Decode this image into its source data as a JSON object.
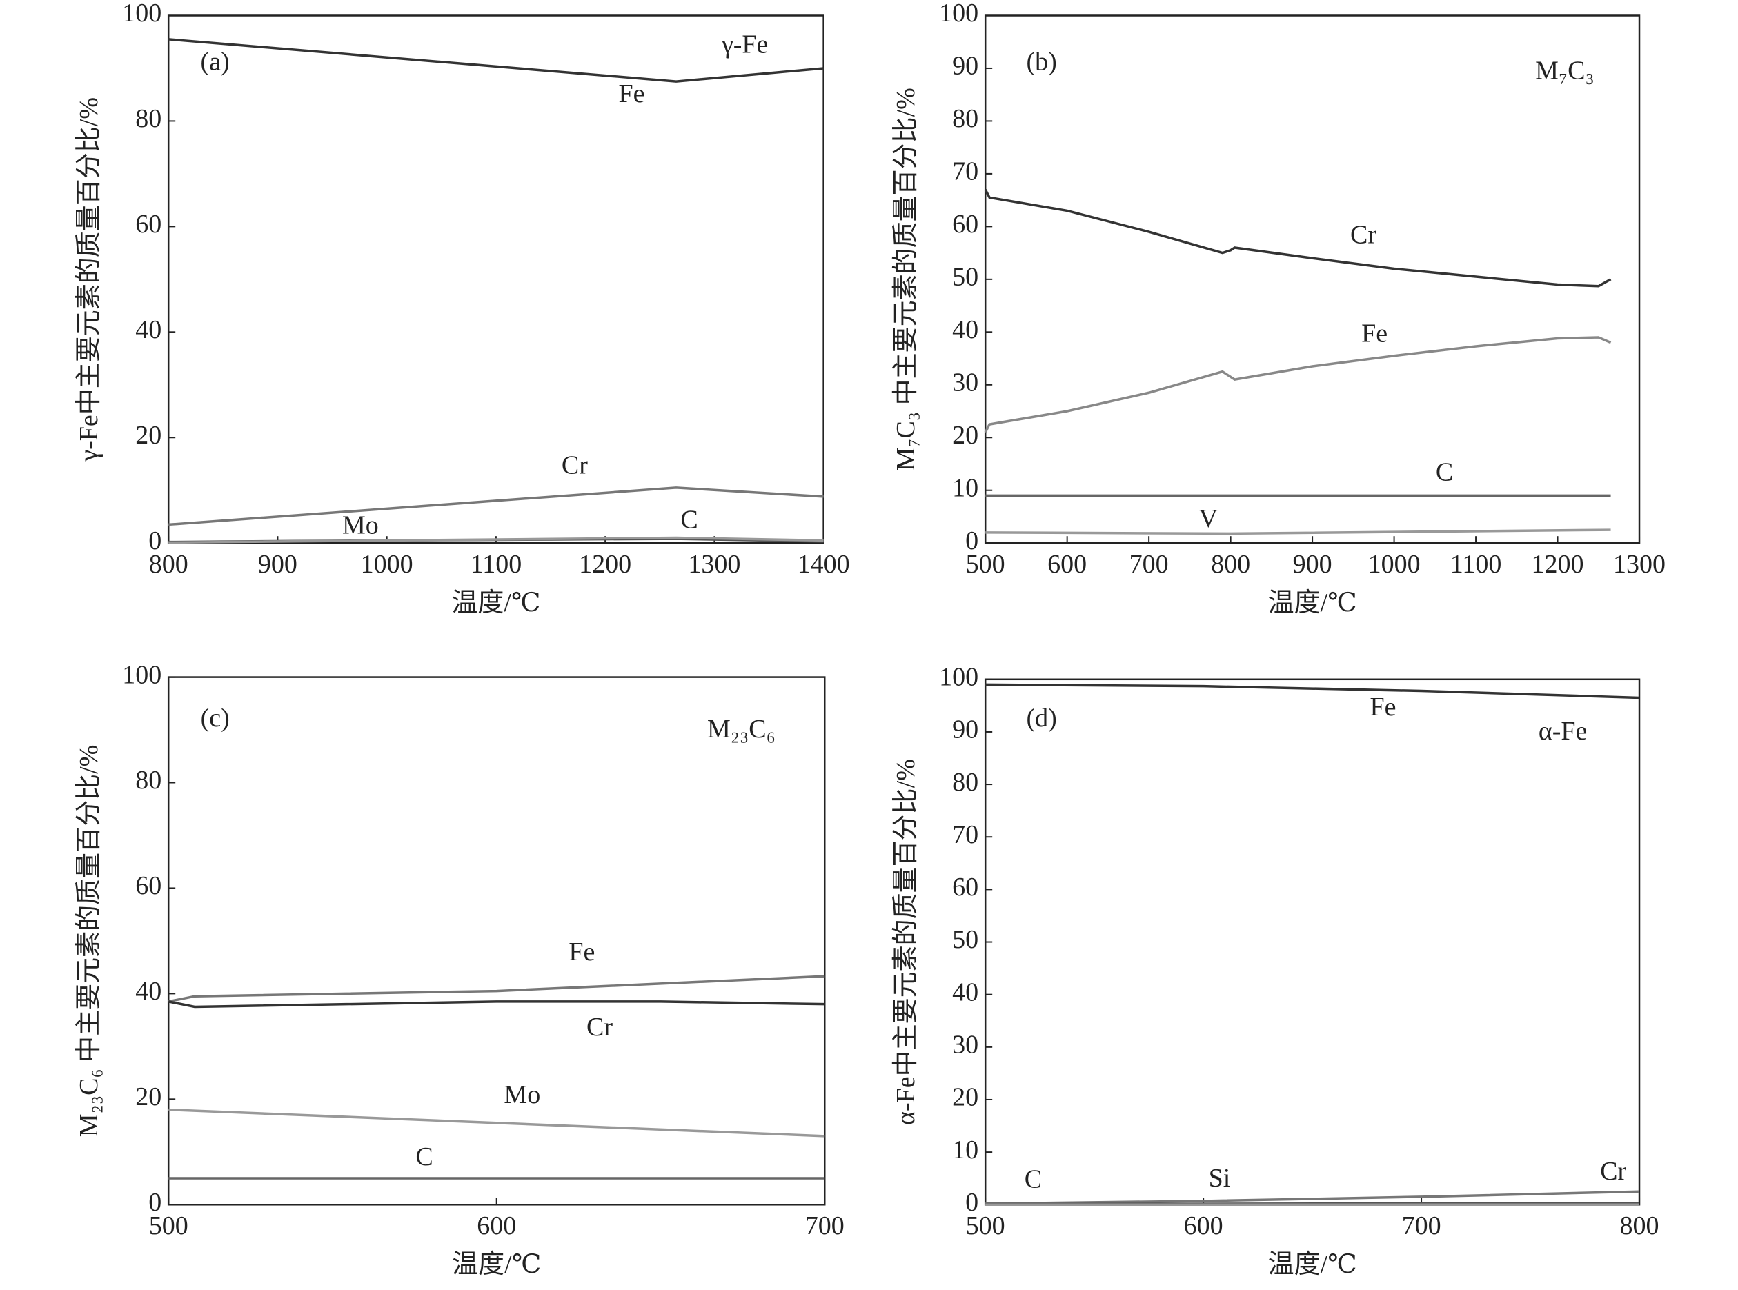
{
  "chart_data": [
    {
      "type": "line",
      "panel_label": "(a)",
      "annotation": "γ-Fe",
      "x_label": "温度/℃",
      "y_label": "γ-Fe中主要元素的质量百分比/%",
      "xlim": [
        800,
        1400
      ],
      "xticks": [
        800,
        900,
        1000,
        1100,
        1200,
        1300,
        1400
      ],
      "ylim": [
        0,
        100
      ],
      "yticks": [
        0,
        20,
        40,
        60,
        80,
        100
      ],
      "series": [
        {
          "name": "Fe",
          "color": "#333333",
          "x": [
            800,
            1265,
            1400
          ],
          "values": [
            95.5,
            87.5,
            90
          ]
        },
        {
          "name": "Cr",
          "color": "#777777",
          "x": [
            800,
            1265,
            1400
          ],
          "values": [
            3.5,
            10.5,
            8.8
          ]
        },
        {
          "name": "Mo",
          "color": "#555555",
          "x": [
            800,
            1000,
            1265,
            1400
          ],
          "values": [
            0.2,
            0.5,
            0.8,
            0.3
          ]
        },
        {
          "name": "C",
          "color": "#999999",
          "x": [
            800,
            1265,
            1400
          ],
          "values": [
            0.1,
            1,
            0.5
          ]
        }
      ]
    },
    {
      "type": "line",
      "panel_label": "(b)",
      "annotation": "M₇C₃",
      "x_label": "温度/℃",
      "y_label": "M₇C₃ 中主要元素的质量百分比/%",
      "xlim": [
        500,
        1300
      ],
      "xticks": [
        500,
        600,
        700,
        800,
        900,
        1000,
        1100,
        1200,
        1300
      ],
      "ylim": [
        0,
        100
      ],
      "yticks": [
        0,
        10,
        20,
        30,
        40,
        50,
        60,
        70,
        80,
        90,
        100
      ],
      "series": [
        {
          "name": "Cr",
          "color": "#333333",
          "x": [
            500,
            505,
            600,
            700,
            790,
            800,
            805,
            900,
            1000,
            1100,
            1200,
            1250,
            1265
          ],
          "values": [
            67,
            65.5,
            63,
            59,
            55,
            55.5,
            56,
            54,
            52,
            50.5,
            49,
            48.7,
            50
          ]
        },
        {
          "name": "Fe",
          "color": "#888888",
          "x": [
            500,
            505,
            600,
            700,
            790,
            800,
            805,
            900,
            1000,
            1100,
            1200,
            1250,
            1265
          ],
          "values": [
            21,
            22.5,
            25,
            28.5,
            32.5,
            31.5,
            31,
            33.5,
            35.5,
            37.3,
            38.8,
            39,
            38
          ]
        },
        {
          "name": "C",
          "color": "#666666",
          "x": [
            500,
            1265
          ],
          "values": [
            9,
            9
          ]
        },
        {
          "name": "V",
          "color": "#999999",
          "x": [
            500,
            800,
            1265
          ],
          "values": [
            2,
            1.8,
            2.5
          ]
        }
      ]
    },
    {
      "type": "line",
      "panel_label": "(c)",
      "annotation": "M₂₃C₆",
      "x_label": "温度/℃",
      "y_label": "M₂₃C₆ 中主要元素的质量百分比/%",
      "xlim": [
        500,
        700
      ],
      "xticks": [
        500,
        600,
        700
      ],
      "ylim": [
        0,
        100
      ],
      "yticks": [
        0,
        20,
        40,
        60,
        80,
        100
      ],
      "series": [
        {
          "name": "Fe",
          "color": "#777777",
          "x": [
            500,
            508,
            600,
            700
          ],
          "values": [
            38.5,
            39.5,
            40.5,
            43.3
          ]
        },
        {
          "name": "Cr",
          "color": "#333333",
          "x": [
            500,
            508,
            600,
            650,
            700
          ],
          "values": [
            38.5,
            37.5,
            38.5,
            38.5,
            38
          ]
        },
        {
          "name": "Mo",
          "color": "#999999",
          "x": [
            500,
            700
          ],
          "values": [
            18,
            13
          ]
        },
        {
          "name": "C",
          "color": "#666666",
          "x": [
            500,
            700
          ],
          "values": [
            5,
            5
          ]
        }
      ]
    },
    {
      "type": "line",
      "panel_label": "(d)",
      "annotation": "α-Fe",
      "x_label": "温度/℃",
      "y_label": "α-Fe中主要元素的质量百分比/%",
      "xlim": [
        500,
        800
      ],
      "xticks": [
        500,
        600,
        700,
        800
      ],
      "ylim": [
        0,
        100
      ],
      "yticks": [
        0,
        10,
        20,
        30,
        40,
        50,
        60,
        70,
        80,
        90,
        100
      ],
      "series": [
        {
          "name": "Fe",
          "color": "#333333",
          "x": [
            500,
            600,
            700,
            800
          ],
          "values": [
            99,
            98.7,
            97.8,
            96.5
          ]
        },
        {
          "name": "Cr",
          "color": "#777777",
          "x": [
            500,
            600,
            700,
            800
          ],
          "values": [
            0.2,
            0.7,
            1.5,
            2.5
          ]
        },
        {
          "name": "Si",
          "color": "#555555",
          "x": [
            500,
            800
          ],
          "values": [
            0.1,
            0.3
          ]
        },
        {
          "name": "C",
          "color": "#999999",
          "x": [
            500,
            800
          ],
          "values": [
            0,
            0
          ]
        }
      ]
    }
  ]
}
